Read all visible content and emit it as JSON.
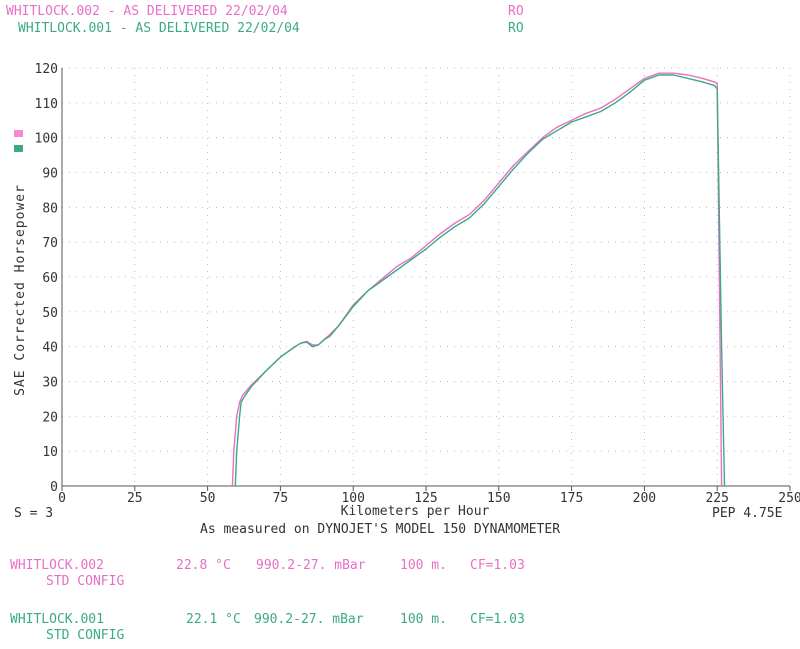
{
  "header": {
    "run2": {
      "label": "WHITLOCK.002 - AS DELIVERED 22/02/04",
      "code": "RO"
    },
    "run1": {
      "label": "WHITLOCK.001 - AS DELIVERED 22/02/04",
      "code": "RO"
    }
  },
  "footer": {
    "smoothing": "S = 3",
    "pep": "PEP 4.75E",
    "subtitle": "As measured on DYNOJET'S MODEL 150 DYNAMOMETER"
  },
  "runs": [
    {
      "name": "WHITLOCK.002",
      "temp": "22.8 °C",
      "pressure": "990.2-27. mBar",
      "alt": "100 m.",
      "cf": "CF=1.03",
      "config": "STD CONFIG"
    },
    {
      "name": "WHITLOCK.001",
      "temp": "22.1 °C",
      "pressure": "990.2-27. mBar",
      "alt": "100 m.",
      "cf": "CF=1.03",
      "config": "STD CONFIG"
    }
  ],
  "colors": {
    "pink": "#e86fc6",
    "green": "#3caa83",
    "axis": "#555555",
    "grid": "#bbbbbb"
  },
  "chart_data": {
    "type": "line",
    "xlabel": "Kilometers per Hour",
    "ylabel": "SAE Corrected Horsepower",
    "xlim": [
      0,
      250
    ],
    "ylim": [
      0,
      120
    ],
    "xticks": [
      0,
      25,
      50,
      75,
      100,
      125,
      150,
      175,
      200,
      225,
      250
    ],
    "yticks": [
      0,
      10,
      20,
      30,
      40,
      50,
      60,
      70,
      80,
      90,
      100,
      110,
      120
    ],
    "grid": true,
    "legend": "left swatches",
    "series": [
      {
        "name": "WHITLOCK.002",
        "color": "#e86fc6",
        "points": [
          [
            58.5,
            0
          ],
          [
            59,
            10
          ],
          [
            60,
            20
          ],
          [
            61,
            24
          ],
          [
            62,
            26
          ],
          [
            65,
            29
          ],
          [
            70,
            33
          ],
          [
            75,
            37
          ],
          [
            80,
            40
          ],
          [
            82,
            41
          ],
          [
            84,
            41.5
          ],
          [
            86,
            40.5
          ],
          [
            88,
            40.5
          ],
          [
            90,
            42
          ],
          [
            92,
            43.5
          ],
          [
            95,
            46
          ],
          [
            100,
            52
          ],
          [
            105,
            56
          ],
          [
            110,
            59.5
          ],
          [
            115,
            63
          ],
          [
            120,
            65.5
          ],
          [
            125,
            69
          ],
          [
            130,
            72.5
          ],
          [
            135,
            75.5
          ],
          [
            140,
            78
          ],
          [
            145,
            82
          ],
          [
            150,
            87
          ],
          [
            155,
            92
          ],
          [
            160,
            96
          ],
          [
            165,
            100
          ],
          [
            170,
            103
          ],
          [
            175,
            105
          ],
          [
            180,
            107
          ],
          [
            185,
            108.5
          ],
          [
            190,
            111
          ],
          [
            195,
            114
          ],
          [
            200,
            117
          ],
          [
            205,
            118.5
          ],
          [
            210,
            118.5
          ],
          [
            215,
            118
          ],
          [
            220,
            117
          ],
          [
            224,
            116
          ],
          [
            225,
            115.5
          ],
          [
            226,
            40
          ],
          [
            226.5,
            0
          ]
        ]
      },
      {
        "name": "WHITLOCK.001",
        "color": "#3caa83",
        "points": [
          [
            59.5,
            0
          ],
          [
            60,
            10
          ],
          [
            61,
            20
          ],
          [
            61.5,
            24
          ],
          [
            62.5,
            25.5
          ],
          [
            65,
            28.5
          ],
          [
            70,
            33
          ],
          [
            75,
            37
          ],
          [
            80,
            40
          ],
          [
            82,
            41
          ],
          [
            84,
            41.3
          ],
          [
            86,
            40
          ],
          [
            88,
            40.5
          ],
          [
            90,
            42
          ],
          [
            92,
            43
          ],
          [
            95,
            46
          ],
          [
            100,
            51.5
          ],
          [
            105,
            56
          ],
          [
            110,
            59
          ],
          [
            115,
            62
          ],
          [
            120,
            65
          ],
          [
            125,
            68
          ],
          [
            130,
            71.5
          ],
          [
            135,
            74.5
          ],
          [
            140,
            77
          ],
          [
            145,
            81
          ],
          [
            150,
            86
          ],
          [
            155,
            91
          ],
          [
            160,
            95.5
          ],
          [
            165,
            99.5
          ],
          [
            170,
            102
          ],
          [
            175,
            104.5
          ],
          [
            180,
            106
          ],
          [
            185,
            107.5
          ],
          [
            190,
            110
          ],
          [
            195,
            113
          ],
          [
            200,
            116.5
          ],
          [
            205,
            118
          ],
          [
            210,
            118
          ],
          [
            215,
            117
          ],
          [
            220,
            116
          ],
          [
            224,
            115
          ],
          [
            225,
            114
          ],
          [
            226.5,
            40
          ],
          [
            227.5,
            0
          ]
        ]
      }
    ]
  }
}
